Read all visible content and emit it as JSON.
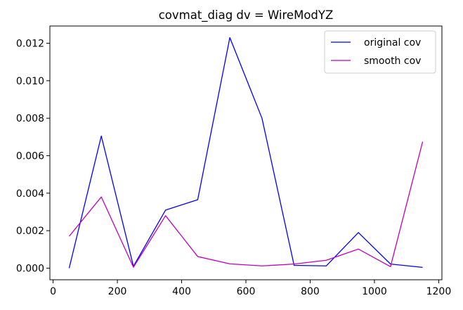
{
  "chart_data": {
    "type": "line",
    "title": "covmat_diag dv = WireModYZ",
    "xlabel": "",
    "ylabel": "",
    "xlim": [
      -10,
      1210
    ],
    "ylim": [
      -0.00062,
      0.01292
    ],
    "x_ticks": [
      0,
      200,
      400,
      600,
      800,
      1000,
      1200
    ],
    "x_tick_labels": [
      "0",
      "200",
      "400",
      "600",
      "800",
      "1000",
      "1200"
    ],
    "y_ticks": [
      0.0,
      0.002,
      0.004,
      0.006,
      0.008,
      0.01,
      0.012
    ],
    "y_tick_labels": [
      "0.000",
      "0.002",
      "0.004",
      "0.006",
      "0.008",
      "0.010",
      "0.012"
    ],
    "grid": false,
    "legend_position": "top-right",
    "x": [
      50,
      150,
      250,
      350,
      450,
      550,
      650,
      750,
      850,
      950,
      1050,
      1150
    ],
    "series": [
      {
        "name": "original cov",
        "color": "#0000ff",
        "values": [
          0.0,
          0.00705,
          0.0001,
          0.0031,
          0.00365,
          0.0123,
          0.008,
          0.00015,
          0.00012,
          0.0019,
          0.00022,
          4e-05
        ]
      },
      {
        "name": "smooth cov",
        "color": "#bf00bf",
        "values": [
          0.0017,
          0.0038,
          5e-05,
          0.0028,
          0.00062,
          0.00023,
          0.00012,
          0.00022,
          0.00042,
          0.00102,
          8e-05,
          0.00675
        ]
      }
    ]
  }
}
